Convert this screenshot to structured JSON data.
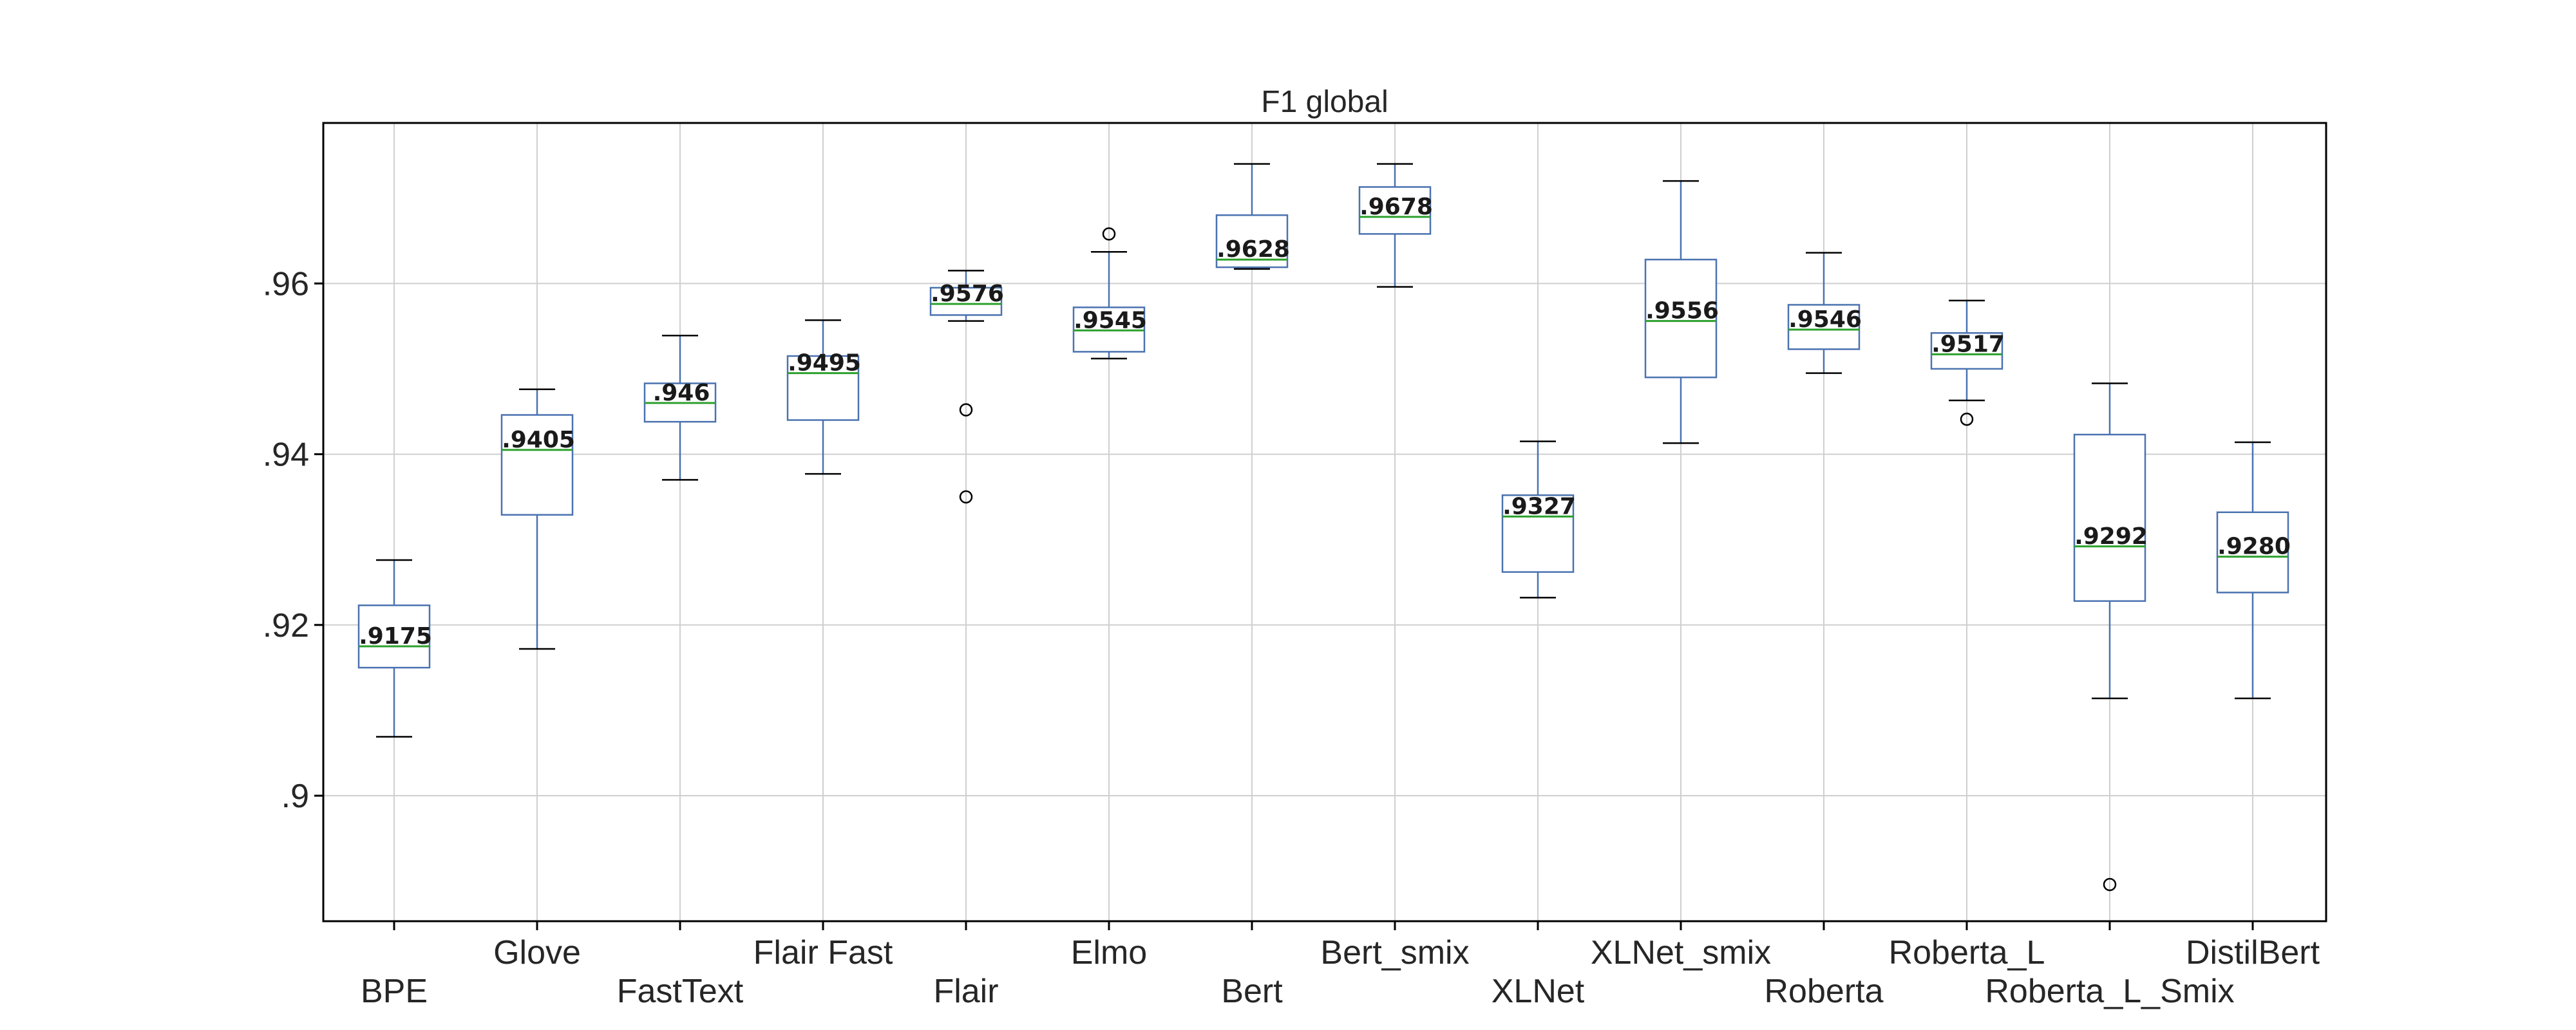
{
  "chart_data": {
    "type": "box",
    "title": "F1 global",
    "xlabel": "",
    "ylabel": "",
    "ylim": [
      0.8853,
      0.9788
    ],
    "yticks": [
      0.9,
      0.92,
      0.94,
      0.96
    ],
    "ytick_labels": [
      ".9",
      ".92",
      ".94",
      ".96"
    ],
    "grid": true,
    "legend": "none",
    "colors": {
      "box": "#4a72b0",
      "median": "#2ca02c",
      "whisker_cap": "#000000",
      "grid": "#cfcfcf",
      "axes": "#000000"
    },
    "categories": [
      "BPE",
      "Glove",
      "FastText",
      "Flair Fast",
      "Flair",
      "Elmo",
      "Bert",
      "Bert_smix",
      "XLNet",
      "XLNet_smix",
      "Roberta",
      "Roberta_L",
      "Roberta_L_Smix",
      "DistilBert"
    ],
    "boxes": [
      {
        "name": "BPE",
        "whisker_low": 0.9069,
        "q1": 0.915,
        "median": 0.9175,
        "q3": 0.9223,
        "whisker_high": 0.9276,
        "outliers": [],
        "label": ".9175"
      },
      {
        "name": "Glove",
        "whisker_low": 0.9172,
        "q1": 0.9329,
        "median": 0.9405,
        "q3": 0.9446,
        "whisker_high": 0.9476,
        "outliers": [],
        "label": ".9405"
      },
      {
        "name": "FastText",
        "whisker_low": 0.937,
        "q1": 0.9438,
        "median": 0.946,
        "q3": 0.9483,
        "whisker_high": 0.9539,
        "outliers": [],
        "label": ".946"
      },
      {
        "name": "Flair Fast",
        "whisker_low": 0.9377,
        "q1": 0.944,
        "median": 0.9495,
        "q3": 0.9515,
        "whisker_high": 0.9557,
        "outliers": [],
        "label": ".9495"
      },
      {
        "name": "Flair",
        "whisker_low": 0.9556,
        "q1": 0.9563,
        "median": 0.9576,
        "q3": 0.9595,
        "whisker_high": 0.9615,
        "outliers": [
          0.9452,
          0.935
        ],
        "label": ".9576"
      },
      {
        "name": "Elmo",
        "whisker_low": 0.9512,
        "q1": 0.952,
        "median": 0.9545,
        "q3": 0.9572,
        "whisker_high": 0.9637,
        "outliers": [
          0.9658
        ],
        "label": ".9545"
      },
      {
        "name": "Bert",
        "whisker_low": 0.9617,
        "q1": 0.9619,
        "median": 0.9628,
        "q3": 0.968,
        "whisker_high": 0.974,
        "outliers": [],
        "label": ".9628"
      },
      {
        "name": "Bert_smix",
        "whisker_low": 0.9596,
        "q1": 0.9658,
        "median": 0.9678,
        "q3": 0.9713,
        "whisker_high": 0.974,
        "outliers": [],
        "label": ".9678"
      },
      {
        "name": "XLNet",
        "whisker_low": 0.9232,
        "q1": 0.9262,
        "median": 0.9327,
        "q3": 0.9352,
        "whisker_high": 0.9415,
        "outliers": [],
        "label": ".9327"
      },
      {
        "name": "XLNet_smix",
        "whisker_low": 0.9413,
        "q1": 0.949,
        "median": 0.9556,
        "q3": 0.9628,
        "whisker_high": 0.972,
        "outliers": [],
        "label": ".9556"
      },
      {
        "name": "Roberta",
        "whisker_low": 0.9495,
        "q1": 0.9523,
        "median": 0.9546,
        "q3": 0.9575,
        "whisker_high": 0.9636,
        "outliers": [],
        "label": ".9546"
      },
      {
        "name": "Roberta_L",
        "whisker_low": 0.9463,
        "q1": 0.95,
        "median": 0.9517,
        "q3": 0.9542,
        "whisker_high": 0.958,
        "outliers": [
          0.9441
        ],
        "label": ".9517"
      },
      {
        "name": "Roberta_L_Smix",
        "whisker_low": 0.9114,
        "q1": 0.9228,
        "median": 0.9292,
        "q3": 0.9423,
        "whisker_high": 0.9483,
        "outliers": [
          0.8896
        ],
        "label": ".9292"
      },
      {
        "name": "DistilBert",
        "whisker_low": 0.9114,
        "q1": 0.9238,
        "median": 0.928,
        "q3": 0.9332,
        "whisker_high": 0.9414,
        "outliers": [],
        "label": ".9280"
      }
    ]
  }
}
